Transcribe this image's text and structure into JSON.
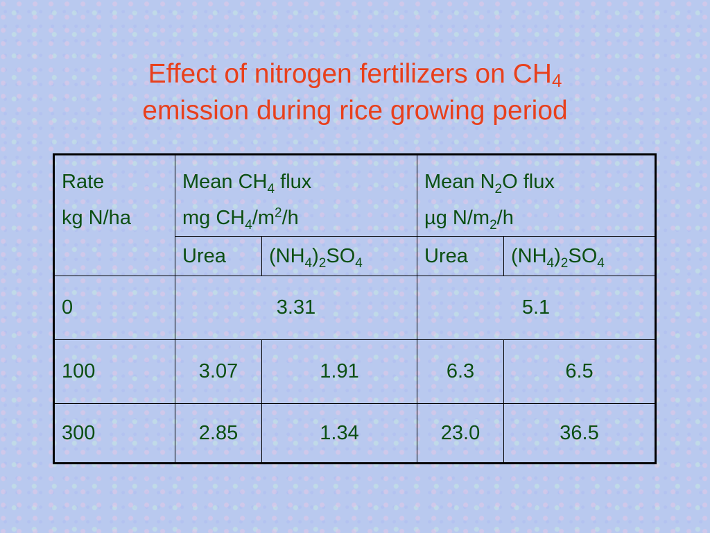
{
  "title": {
    "line1": [
      "Effect of nitrogen fertilizers on CH",
      "4"
    ],
    "line2": "emission during rice growing period"
  },
  "table": {
    "header": {
      "rate": [
        "Rate",
        "kg N/ha"
      ],
      "ch4": {
        "line1": [
          "Mean CH",
          "4",
          " flux"
        ],
        "line2": [
          "mg CH",
          "4",
          "/m",
          "2",
          "/h"
        ]
      },
      "n2o": {
        "line1": [
          "Mean N",
          "2",
          "O flux"
        ],
        "line2": [
          "µg N/m",
          "2",
          "/h"
        ]
      },
      "sub": [
        [
          "Urea"
        ],
        [
          "(NH",
          "4",
          ")",
          "2",
          "SO",
          "4"
        ],
        [
          "Urea"
        ],
        [
          "(NH",
          "4",
          ")",
          "2",
          "SO",
          "4"
        ]
      ]
    },
    "rows": [
      [
        "0",
        "3.31",
        "5.1"
      ],
      [
        "100",
        "3.07",
        "1.91",
        "6.3",
        "6.5"
      ],
      [
        "300",
        "2.85",
        "1.34",
        "23.0",
        "36.5"
      ]
    ]
  }
}
